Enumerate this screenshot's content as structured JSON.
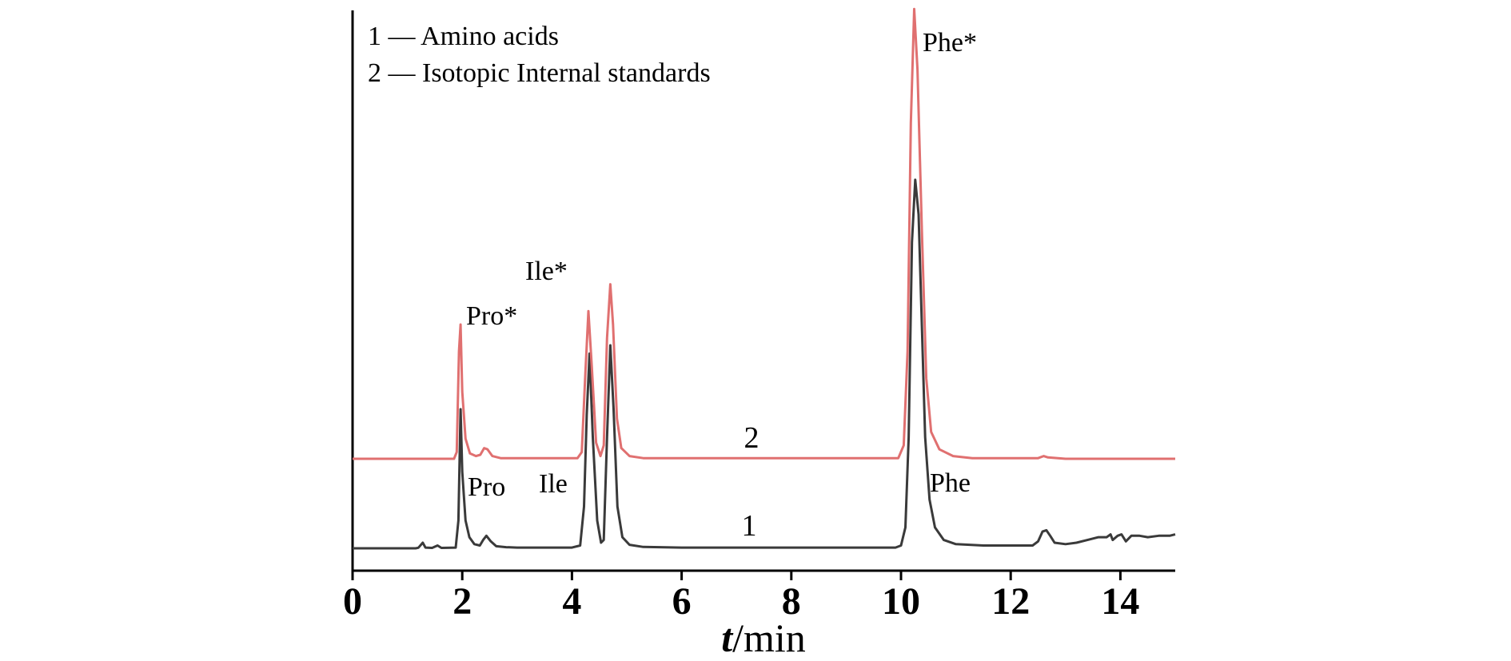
{
  "chart_data": {
    "type": "line",
    "xlabel_italic": "t",
    "xlabel_unit": "/min",
    "ylabel": "",
    "xlim": [
      0,
      15
    ],
    "xticks": [
      0,
      2,
      4,
      6,
      8,
      10,
      12,
      14
    ],
    "grid": false,
    "legend": {
      "placement": "top-left",
      "entries": [
        "1 — Amino acids",
        "2 — Isotopic Internal standards"
      ]
    },
    "series": [
      {
        "id": "1",
        "label": "1",
        "color": "#3a3a3a",
        "baseline": 0,
        "points": [
          [
            0,
            0
          ],
          [
            1.15,
            0
          ],
          [
            1.2,
            0.4
          ],
          [
            1.28,
            4
          ],
          [
            1.33,
            0.5
          ],
          [
            1.45,
            0.3
          ],
          [
            1.55,
            2
          ],
          [
            1.62,
            0.3
          ],
          [
            1.88,
            0.5
          ],
          [
            1.93,
            20
          ],
          [
            1.97,
            100
          ],
          [
            2.0,
            55
          ],
          [
            2.06,
            20
          ],
          [
            2.13,
            8
          ],
          [
            2.22,
            3
          ],
          [
            2.32,
            2
          ],
          [
            2.38,
            6
          ],
          [
            2.44,
            9
          ],
          [
            2.52,
            5
          ],
          [
            2.62,
            1.5
          ],
          [
            2.8,
            0.8
          ],
          [
            3.0,
            0.5
          ],
          [
            4.0,
            0.5
          ],
          [
            4.15,
            2
          ],
          [
            4.22,
            30
          ],
          [
            4.27,
            96
          ],
          [
            4.32,
            140
          ],
          [
            4.38,
            80
          ],
          [
            4.46,
            20
          ],
          [
            4.53,
            4
          ],
          [
            4.58,
            6
          ],
          [
            4.64,
            80
          ],
          [
            4.7,
            146
          ],
          [
            4.76,
            100
          ],
          [
            4.83,
            30
          ],
          [
            4.92,
            8
          ],
          [
            5.05,
            2.5
          ],
          [
            5.3,
            1
          ],
          [
            6.0,
            0.5
          ],
          [
            9.9,
            0.5
          ],
          [
            10.0,
            2
          ],
          [
            10.08,
            15
          ],
          [
            10.14,
            80
          ],
          [
            10.2,
            220
          ],
          [
            10.26,
            265
          ],
          [
            10.32,
            240
          ],
          [
            10.38,
            160
          ],
          [
            10.44,
            80
          ],
          [
            10.52,
            35
          ],
          [
            10.62,
            15
          ],
          [
            10.78,
            6
          ],
          [
            11.0,
            3
          ],
          [
            11.5,
            2
          ],
          [
            12.4,
            2
          ],
          [
            12.5,
            5
          ],
          [
            12.58,
            12
          ],
          [
            12.65,
            13
          ],
          [
            12.72,
            9
          ],
          [
            12.8,
            4
          ],
          [
            13.0,
            3
          ],
          [
            13.2,
            4
          ],
          [
            13.4,
            6
          ],
          [
            13.6,
            8
          ],
          [
            13.75,
            8
          ],
          [
            13.82,
            10
          ],
          [
            13.86,
            6
          ],
          [
            13.95,
            9
          ],
          [
            14.02,
            10
          ],
          [
            14.1,
            5
          ],
          [
            14.2,
            9
          ],
          [
            14.35,
            9
          ],
          [
            14.5,
            8
          ],
          [
            14.7,
            9
          ],
          [
            14.9,
            9
          ],
          [
            15.0,
            10
          ]
        ]
      },
      {
        "id": "2",
        "label": "2",
        "color": "#e07070",
        "baseline": 0,
        "points": [
          [
            0,
            0
          ],
          [
            1.85,
            0
          ],
          [
            1.9,
            5
          ],
          [
            1.94,
            80
          ],
          [
            1.97,
            100
          ],
          [
            2.0,
            50
          ],
          [
            2.06,
            15
          ],
          [
            2.14,
            4
          ],
          [
            2.25,
            2
          ],
          [
            2.33,
            3
          ],
          [
            2.4,
            8
          ],
          [
            2.46,
            7
          ],
          [
            2.55,
            2
          ],
          [
            2.7,
            0.5
          ],
          [
            4.1,
            0.5
          ],
          [
            4.18,
            5
          ],
          [
            4.24,
            60
          ],
          [
            4.3,
            110
          ],
          [
            4.36,
            70
          ],
          [
            4.44,
            12
          ],
          [
            4.52,
            2
          ],
          [
            4.58,
            10
          ],
          [
            4.64,
            90
          ],
          [
            4.7,
            130
          ],
          [
            4.75,
            100
          ],
          [
            4.82,
            30
          ],
          [
            4.9,
            8
          ],
          [
            5.05,
            2
          ],
          [
            5.3,
            0.5
          ],
          [
            9.95,
            0.5
          ],
          [
            10.05,
            10
          ],
          [
            10.12,
            80
          ],
          [
            10.18,
            250
          ],
          [
            10.24,
            335
          ],
          [
            10.3,
            290
          ],
          [
            10.38,
            170
          ],
          [
            10.46,
            60
          ],
          [
            10.55,
            20
          ],
          [
            10.7,
            7
          ],
          [
            10.95,
            2
          ],
          [
            11.3,
            0.5
          ],
          [
            12.5,
            0.5
          ],
          [
            12.6,
            2
          ],
          [
            12.68,
            1
          ],
          [
            13.0,
            0
          ],
          [
            15.0,
            0
          ]
        ]
      }
    ],
    "peak_labels": [
      {
        "text": "Pro*",
        "series": "2",
        "x": 1.97
      },
      {
        "text": "Ile*",
        "series": "2",
        "x": 4.3
      },
      {
        "text": "Phe*",
        "series": "2",
        "x": 10.24
      },
      {
        "text": "Pro",
        "series": "1",
        "x": 1.97
      },
      {
        "text": "Ile",
        "series": "1",
        "x": 4.3
      },
      {
        "text": "Phe",
        "series": "1",
        "x": 10.26
      }
    ],
    "curve_labels": [
      {
        "text": "2",
        "series": "2"
      },
      {
        "text": "1",
        "series": "1"
      }
    ]
  }
}
